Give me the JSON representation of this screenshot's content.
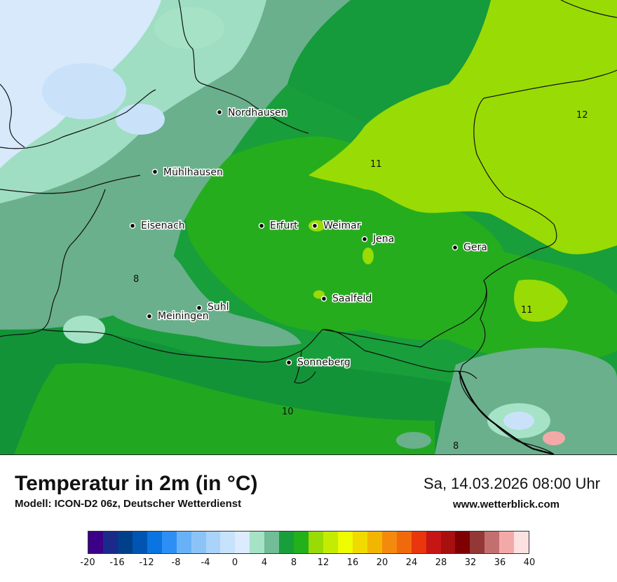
{
  "map": {
    "cities": [
      {
        "name": "Nordhausen"
      },
      {
        "name": "Mühlhausen"
      },
      {
        "name": "Eisenach"
      },
      {
        "name": "Erfurt"
      },
      {
        "name": "Weimar"
      },
      {
        "name": "Jena"
      },
      {
        "name": "Gera"
      },
      {
        "name": "Saalfeld"
      },
      {
        "name": "Suhl"
      },
      {
        "name": "Meiningen"
      },
      {
        "name": "Sonneberg"
      }
    ],
    "isolines": [
      {
        "value": "12"
      },
      {
        "value": "11"
      },
      {
        "value": "8"
      },
      {
        "value": "11"
      },
      {
        "value": "10"
      },
      {
        "value": "8"
      }
    ]
  },
  "footer": {
    "title": "Temperatur in 2m (in °C)",
    "model": "Modell: ICON-D2 06z, Deutscher Wetterdienst",
    "datetime": "Sa, 14.03.2026 08:00 Uhr",
    "website": "www.wetterblick.com"
  },
  "legend": {
    "ticks": [
      "-20",
      "-16",
      "-12",
      "-8",
      "-4",
      "0",
      "4",
      "8",
      "12",
      "16",
      "20",
      "24",
      "28",
      "32",
      "36",
      "40"
    ],
    "colors": [
      "#3b0087",
      "#1a2a8a",
      "#003f8a",
      "#0055b3",
      "#0a74e0",
      "#2d8ff5",
      "#67b2f7",
      "#8cc3f7",
      "#a9d3f9",
      "#c7e2fb",
      "#dcebfd",
      "#a5e2c6",
      "#70bd97",
      "#189e3a",
      "#23b01a",
      "#99db05",
      "#c3ec02",
      "#eefc00",
      "#f1da00",
      "#f2b600",
      "#f38a0e",
      "#f06a0c",
      "#e9360d",
      "#c61515",
      "#a81010",
      "#7e0000",
      "#933737",
      "#c36f6f",
      "#f4a9a9",
      "#fde0e0"
    ]
  }
}
